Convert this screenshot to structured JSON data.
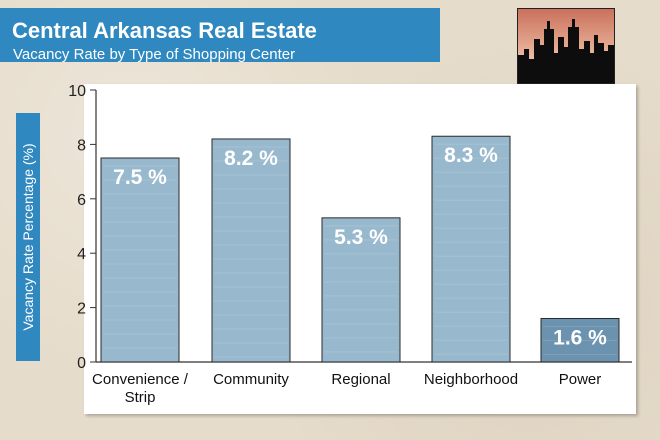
{
  "header": {
    "title": "Central Arkansas Real Estate",
    "subtitle": "Vacancy Rate by Type of Shopping Center"
  },
  "colors": {
    "accent": "#2f88c0",
    "bar_fill": "#8fb3c9",
    "bar_fill_highlight": "#5e89a7",
    "background": "#e6dccb"
  },
  "logo": {
    "icon": "city-skyline-icon"
  },
  "chart_data": {
    "type": "bar",
    "title": "Vacancy Rate by Type of Shopping Center",
    "ylabel": "Vacancy Rate Percentage (%)",
    "xlabel": "",
    "ylim": [
      0,
      10
    ],
    "yticks": [
      0,
      2,
      4,
      6,
      8,
      10
    ],
    "grid": false,
    "categories": [
      [
        "Convenience /",
        "Strip"
      ],
      [
        "Community"
      ],
      [
        "Regional"
      ],
      [
        "Neighborhood"
      ],
      [
        "Power"
      ]
    ],
    "values": [
      7.5,
      8.2,
      5.3,
      8.3,
      1.6
    ],
    "value_labels": [
      "7.5 %",
      "8.2 %",
      "5.3 %",
      "8.3 %",
      "1.6 %"
    ]
  }
}
